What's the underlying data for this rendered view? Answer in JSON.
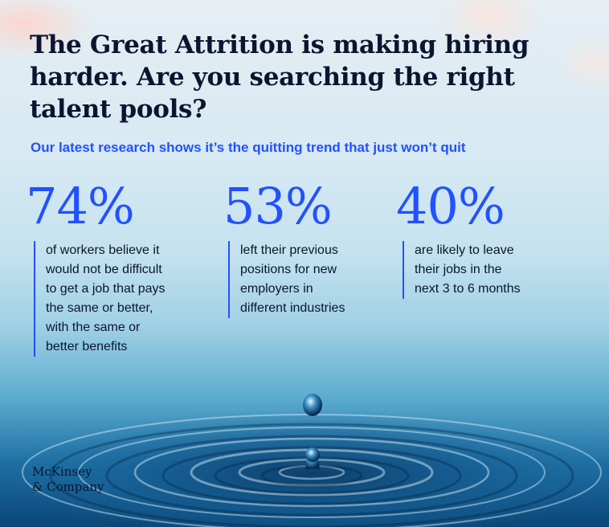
{
  "headline": "The Great Attrition is making hiring harder. Are you searching the right talent pools?",
  "subheadline": "Our latest research shows it’s the quitting trend that just won’t quit",
  "stats": [
    {
      "value": "74%",
      "description": "of workers believe it\nwould not be difficult\nto get a job that pays\nthe same or better,\nwith the same or\nbetter benefits"
    },
    {
      "value": "53%",
      "description": "left their previous\npositions for new\nemployers in\ndifferent industries"
    },
    {
      "value": "40%",
      "description": "are likely to leave\ntheir jobs in the\nnext 3 to 6 months"
    }
  ],
  "logo": {
    "line1": "McKinsey",
    "line2": "& Company"
  },
  "colors": {
    "accent": "#2251ff",
    "text": "#0a1530",
    "water_dark": "#0b4678"
  }
}
